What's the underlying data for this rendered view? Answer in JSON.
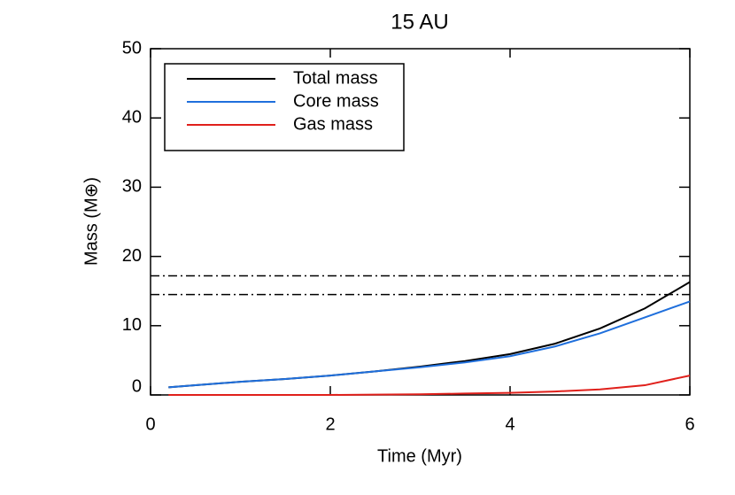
{
  "chart_data": {
    "type": "line",
    "title": "15 AU",
    "x_label": "Time (Myr)",
    "y_label": "Mass (M⊕)",
    "x": [
      0.2,
      0.5,
      1,
      1.5,
      2,
      2.5,
      3,
      3.5,
      4,
      4.5,
      5,
      5.5,
      6
    ],
    "series": [
      {
        "name": "Total mass",
        "color": "#000000",
        "values": [
          1.1,
          1.4,
          1.9,
          2.3,
          2.8,
          3.4,
          4.1,
          4.9,
          5.9,
          7.4,
          9.6,
          12.5,
          16.3
        ]
      },
      {
        "name": "Core mass",
        "color": "#1f6fdc",
        "values": [
          1.1,
          1.4,
          1.9,
          2.3,
          2.8,
          3.4,
          4.0,
          4.7,
          5.6,
          7.0,
          8.9,
          11.2,
          13.5
        ]
      },
      {
        "name": "Gas mass",
        "color": "#e0201b",
        "values": [
          0,
          0,
          0,
          0,
          0,
          0.05,
          0.1,
          0.2,
          0.3,
          0.5,
          0.8,
          1.4,
          2.8
        ]
      }
    ],
    "hlines": [
      17.2,
      14.5
    ],
    "xlim": [
      0,
      6
    ],
    "ylim": [
      0,
      50
    ],
    "xticks": [
      0,
      2,
      4,
      6
    ],
    "yticks": [
      0,
      10,
      20,
      30,
      40,
      50
    ],
    "legend": "upper left"
  }
}
